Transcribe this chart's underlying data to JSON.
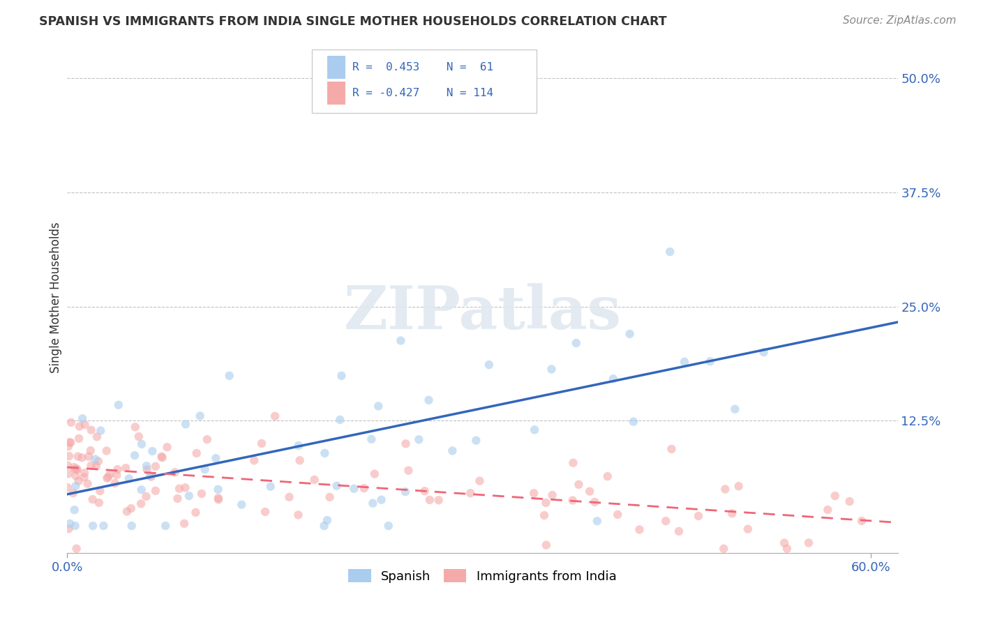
{
  "title": "SPANISH VS IMMIGRANTS FROM INDIA SINGLE MOTHER HOUSEHOLDS CORRELATION CHART",
  "source_text": "Source: ZipAtlas.com",
  "ylabel": "Single Mother Households",
  "watermark": "ZIPatlas",
  "xlim": [
    0.0,
    0.62
  ],
  "ylim": [
    -0.02,
    0.54
  ],
  "xticks": [
    0.0,
    0.6
  ],
  "xticklabels": [
    "0.0%",
    "60.0%"
  ],
  "yticks": [
    0.0,
    0.125,
    0.25,
    0.375,
    0.5
  ],
  "yticklabels": [
    "",
    "12.5%",
    "25.0%",
    "37.5%",
    "50.0%"
  ],
  "color_spanish": "#aaccee",
  "color_india": "#f5aaaa",
  "line_color_spanish": "#3366bb",
  "line_color_india": "#ee6677",
  "background_color": "#ffffff",
  "grid_color": "#bbbbbb",
  "title_color": "#333333",
  "source_color": "#888888",
  "ylabel_color": "#333333",
  "tick_color": "#3366bb",
  "scatter_alpha": 0.6,
  "scatter_size": 80
}
